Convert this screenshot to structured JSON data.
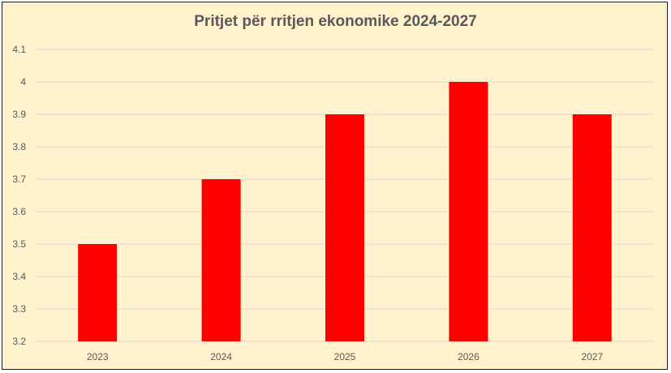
{
  "chart_data": {
    "type": "bar",
    "title": "Pritjet për rritjen ekonomike 2024-2027",
    "categories": [
      "2023",
      "2024",
      "2025",
      "2026",
      "2027"
    ],
    "values": [
      3.5,
      3.7,
      3.9,
      4.0,
      3.9
    ],
    "xlabel": "",
    "ylabel": "",
    "ylim": [
      3.2,
      4.1
    ],
    "yticks": [
      "3.2",
      "3.3",
      "3.4",
      "3.5",
      "3.6",
      "3.7",
      "3.8",
      "3.9",
      "4",
      "4.1"
    ],
    "grid": true,
    "legend": "none",
    "bar_color": "#ff0000",
    "background_color": "#fff2cc"
  }
}
